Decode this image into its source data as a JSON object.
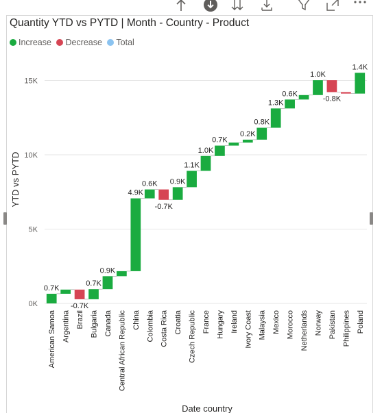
{
  "visual": {
    "title": "Quantity YTD vs PYTD | Month - Country - Product",
    "legend": [
      {
        "label": "Increase",
        "color": "#1aab40"
      },
      {
        "label": "Decrease",
        "color": "#d64554"
      },
      {
        "label": "Total",
        "color": "#8bc3f0"
      }
    ]
  },
  "toolbar": {
    "icons": [
      "drill-up-icon",
      "drill-down-icon",
      "expand-all-icon",
      "expand-next-level-icon",
      "filter-icon",
      "focus-mode-icon",
      "more-options-icon"
    ]
  },
  "chart_data": {
    "type": "waterfall",
    "title": "Quantity YTD vs PYTD | Month - Country - Product",
    "xlabel": "Date country",
    "ylabel": "YTD vs PYTD",
    "ylim": [
      0,
      16500
    ],
    "yticks": [
      0,
      5000,
      10000,
      15000
    ],
    "ytick_labels": [
      "0K",
      "5K",
      "10K",
      "15K"
    ],
    "grid": true,
    "legend_position": "top-left",
    "colors": {
      "increase": "#1aab40",
      "decrease": "#d64554",
      "total": "#8bc3f0"
    },
    "categories": [
      "American Samoa",
      "Argentina",
      "Brazil",
      "Bulgaria",
      "Canada",
      "Central African Republic",
      "China",
      "Colombia",
      "Costa Rica",
      "Croatia",
      "Czech Republic",
      "France",
      "Hungary",
      "Ireland",
      "Ivory Coast",
      "Malaysia",
      "Mexico",
      "Morocco",
      "Netherlands",
      "Norway",
      "Pakistan",
      "Philippines",
      "Poland"
    ],
    "values": [
      650,
      280,
      -650,
      680,
      870,
      340,
      4900,
      600,
      -700,
      850,
      1100,
      1000,
      700,
      200,
      200,
      800,
      1300,
      600,
      300,
      1000,
      -800,
      -100,
      1400
    ],
    "data_labels": [
      "0.7K",
      "",
      "-0.7K",
      "0.7K",
      "0.9K",
      "",
      "4.9K",
      "0.6K",
      "-0.7K",
      "0.9K",
      "1.1K",
      "1.0K",
      "0.7K",
      "",
      "0.2K",
      "0.8K",
      "1.3K",
      "0.6K",
      "",
      "1.0K",
      "-0.8K",
      "",
      "1.4K"
    ]
  }
}
